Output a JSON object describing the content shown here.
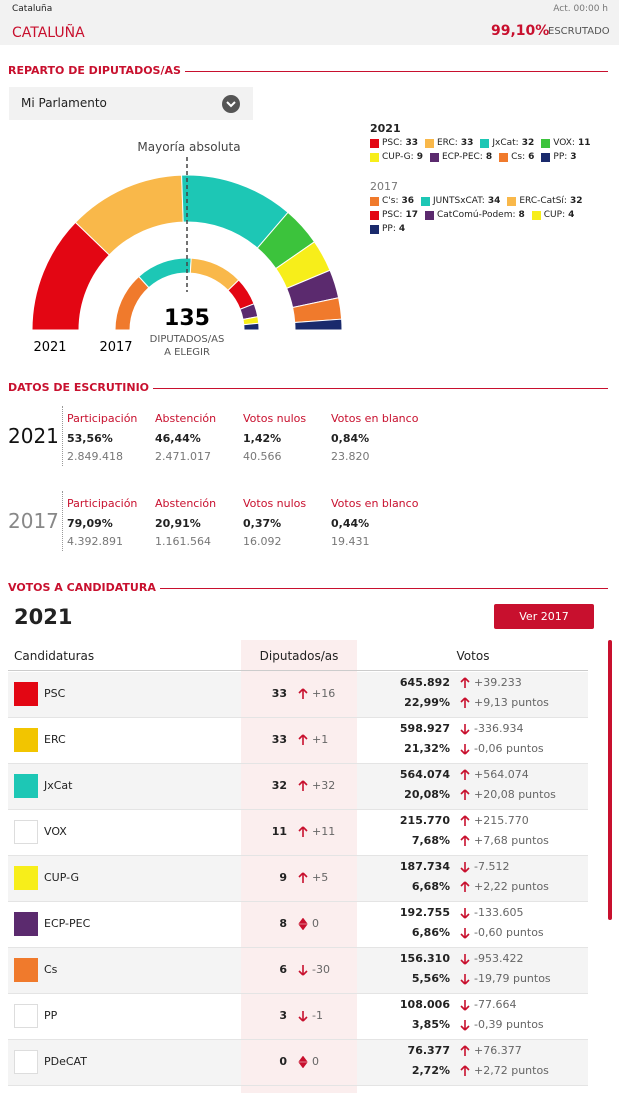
{
  "header": {
    "region_small": "Cataluña",
    "updated": "Act. 00:00 h",
    "region": "CATALUÑA",
    "scrutinized_pct": "99,10%",
    "scrutinized_label": "ESCRUTADO"
  },
  "sections": [
    "REPARTO DE DIPUTADOS/AS",
    "DATOS DE ESCRUTINIO",
    "VOTOS A CANDIDATURA"
  ],
  "dropdown": "Mi Parlamento",
  "chart_data": {
    "type": "parliament",
    "annotation": "Mayoría absoluta",
    "total": 135,
    "total_label": [
      "DIPUTADOS/AS",
      "A ELEGIR"
    ],
    "series": [
      {
        "name": "2021",
        "categories": [
          "PSC:",
          "ERC:",
          "JxCat:",
          "VOX:",
          "CUP-G:",
          "ECP-PEC:",
          "Cs:",
          "PP:"
        ],
        "colors": [
          "#e30613",
          "#f9b84a",
          "#1dc7b5",
          "#3cc33c",
          "#f7ee1a",
          "#5b2a6e",
          "#f07a2c",
          "#1a2a6c"
        ],
        "values": [
          33,
          33,
          32,
          11,
          9,
          8,
          6,
          3
        ]
      },
      {
        "name": "2017",
        "categories": [
          "C's:",
          "JUNTSxCAT:",
          "ERC-CatSí:",
          "PSC:",
          "CatComú-Podem:",
          "CUP:",
          "PP:"
        ],
        "colors": [
          "#f07a2c",
          "#1dc7b5",
          "#f9b84a",
          "#e30613",
          "#5b2a6e",
          "#f7ee1a",
          "#1a2a6c"
        ],
        "values": [
          36,
          34,
          32,
          17,
          8,
          4,
          4
        ]
      }
    ]
  },
  "scrutiny": {
    "columns": [
      "Participación",
      "Abstención",
      "Votos nulos",
      "Votos en blanco"
    ],
    "years": [
      {
        "year": "2021",
        "cells": [
          {
            "pct": "53,56%",
            "count": "2.849.418"
          },
          {
            "pct": "46,44%",
            "count": "2.471.017"
          },
          {
            "pct": "1,42%",
            "count": "40.566"
          },
          {
            "pct": "0,84%",
            "count": "23.820"
          }
        ]
      },
      {
        "year": "2017",
        "cells": [
          {
            "pct": "79,09%",
            "count": "4.392.891"
          },
          {
            "pct": "20,91%",
            "count": "1.161.564"
          },
          {
            "pct": "0,37%",
            "count": "16.092"
          },
          {
            "pct": "0,44%",
            "count": "19.431"
          }
        ]
      }
    ]
  },
  "table": {
    "year": "2021",
    "button": "Ver 2017",
    "headers": [
      "Candidaturas",
      "Diputados/as",
      "Votos"
    ],
    "rows": [
      {
        "name": "PSC",
        "seats": "33",
        "seats_change": "+16",
        "votes": "645.892",
        "votes_change": "+39.233",
        "pct": "22,99%",
        "pct_change": "+9,13 puntos"
      },
      {
        "name": "ERC",
        "seats": "33",
        "seats_change": "+1",
        "votes": "598.927",
        "votes_change": "-336.934",
        "pct": "21,32%",
        "pct_change": "-0,06 puntos"
      },
      {
        "name": "JxCat",
        "seats": "32",
        "seats_change": "+32",
        "votes": "564.074",
        "votes_change": "+564.074",
        "pct": "20,08%",
        "pct_change": "+20,08 puntos"
      },
      {
        "name": "VOX",
        "seats": "11",
        "seats_change": "+11",
        "votes": "215.770",
        "votes_change": "+215.770",
        "pct": "7,68%",
        "pct_change": "+7,68 puntos"
      },
      {
        "name": "CUP-G",
        "seats": "9",
        "seats_change": "+5",
        "votes": "187.734",
        "votes_change": "-7.512",
        "pct": "6,68%",
        "pct_change": "+2,22 puntos"
      },
      {
        "name": "ECP-PEC",
        "seats": "8",
        "seats_change": "0",
        "votes": "192.755",
        "votes_change": "-133.605",
        "pct": "6,86%",
        "pct_change": "-0,60 puntos"
      },
      {
        "name": "Cs",
        "seats": "6",
        "seats_change": "-30",
        "votes": "156.310",
        "votes_change": "-953.422",
        "pct": "5,56%",
        "pct_change": "-19,79 puntos"
      },
      {
        "name": "PP",
        "seats": "3",
        "seats_change": "-1",
        "votes": "108.006",
        "votes_change": "-77.664",
        "pct": "3,85%",
        "pct_change": "-0,39 puntos"
      },
      {
        "name": "PDeCAT",
        "seats": "0",
        "seats_change": "0",
        "votes": "76.377",
        "votes_change": "+76.377",
        "pct": "2,72%",
        "pct_change": "+2,72 puntos"
      }
    ]
  }
}
